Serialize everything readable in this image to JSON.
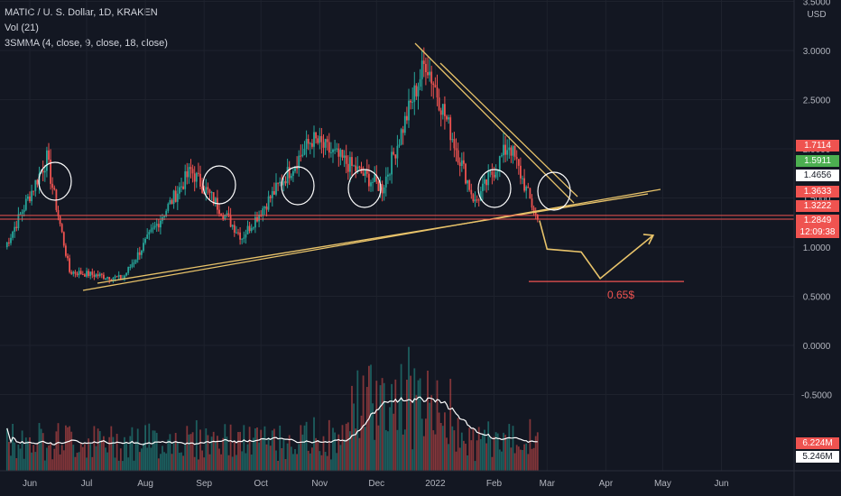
{
  "header": {
    "symbol_line": "MATIC / U. S. Dollar, 1D, KRAKEN",
    "vol_line": "Vol (21)",
    "ma_line": "3SMMA (4, close, 9, close, 18, close)"
  },
  "currency": "USD",
  "colors": {
    "background": "#131722",
    "up": "#26a69a",
    "down": "#ef5350",
    "trendline": "#e8c36a",
    "support": "#ef5350",
    "circle": "#ffffff",
    "volume_ma": "#ffffff"
  },
  "annotations": {
    "target_label": "0.65$",
    "target_price": 0.65
  },
  "price_badges": [
    {
      "label": "1.7114",
      "color": "#ef5350",
      "text": "#ffffff"
    },
    {
      "label": "1.5911",
      "color": "#4caf50",
      "text": "#ffffff"
    },
    {
      "label": "1.4656",
      "color": "#ffffff",
      "text": "#131722"
    },
    {
      "label": "1.3633",
      "color": "#ef5350",
      "text": "#ffffff"
    },
    {
      "label": "1.3222",
      "color": "#ef5350",
      "text": "#ffffff"
    },
    {
      "label": "1.2849",
      "color": "#ef5350",
      "text": "#ffffff"
    },
    {
      "label": "12:09:38",
      "color": "#ef5350",
      "text": "#ffffff"
    }
  ],
  "volume_badges": [
    {
      "label": "6.224M",
      "color": "#ef5350",
      "text": "#ffffff"
    },
    {
      "label": "5.246M",
      "color": "#ffffff",
      "text": "#131722"
    }
  ],
  "chart_data": {
    "type": "candlestick",
    "title": "MATIC / U. S. Dollar, 1D, KRAKEN",
    "y_axis": {
      "ticks": [
        "3.5000",
        "3.0000",
        "2.5000",
        "2.0000",
        "1.5000",
        "1.0000",
        "0.5000",
        "0.0000",
        "-0.5000"
      ],
      "range": [
        -0.5,
        3.5
      ]
    },
    "x_axis": {
      "ticks": [
        "Jun",
        "Jul",
        "Aug",
        "Sep",
        "Oct",
        "Nov",
        "Dec",
        "2022",
        "Feb",
        "Mar",
        "Apr",
        "May",
        "Jun"
      ]
    },
    "grid": true,
    "key_prices": {
      "last": 1.2849,
      "support_levels": [
        1.3222,
        1.2849
      ],
      "target": 0.65
    },
    "swing_points": [
      {
        "date": "2021-05-19",
        "price": 1.0
      },
      {
        "date": "2021-06-10",
        "price": 1.9
      },
      {
        "date": "2021-06-22",
        "price": 0.75
      },
      {
        "date": "2021-07-20",
        "price": 0.68
      },
      {
        "date": "2021-08-25",
        "price": 1.78
      },
      {
        "date": "2021-09-21",
        "price": 1.1
      },
      {
        "date": "2021-10-28",
        "price": 2.1
      },
      {
        "date": "2021-12-04",
        "price": 1.6
      },
      {
        "date": "2021-12-27",
        "price": 2.9
      },
      {
        "date": "2022-01-22",
        "price": 1.45
      },
      {
        "date": "2022-02-09",
        "price": 2.05
      },
      {
        "date": "2022-02-24",
        "price": 1.27
      }
    ],
    "projection": [
      {
        "date": "2022-02-25",
        "price": 1.27
      },
      {
        "date": "2022-03-01",
        "price": 0.98
      },
      {
        "date": "2022-03-19",
        "price": 0.95
      },
      {
        "date": "2022-03-29",
        "price": 0.68
      },
      {
        "date": "2022-04-26",
        "price": 1.12
      }
    ]
  }
}
